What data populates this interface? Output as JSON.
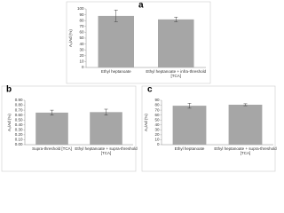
{
  "chart_data": [
    {
      "type": "bar",
      "panel_label": "a",
      "y_label": "A₀/Ad (%)",
      "categories": [
        "Ethyl heptanoate",
        "Ethyl heptanoate + infra-threshold [TCA]"
      ],
      "values": [
        88,
        82
      ],
      "errors": [
        10,
        4
      ],
      "color": "#a6a6a6",
      "ylim": [
        0,
        100
      ],
      "yticks": [
        0,
        10,
        20,
        30,
        40,
        50,
        60,
        70,
        80,
        90,
        100
      ]
    },
    {
      "type": "bar",
      "panel_label": "b",
      "y_label": "A₀/Ad (%)",
      "categories": [
        "Supra-threshold [TCA]",
        "Ethyl heptanoate + supra-threshold [TCA]"
      ],
      "values": [
        0.65,
        0.66
      ],
      "errors": [
        0.05,
        0.06
      ],
      "color": "#a6a6a6",
      "ylim": [
        0,
        0.9
      ],
      "yticks": [
        {
          "value": 0,
          "label": "0.00"
        },
        {
          "value": 0.1,
          "label": "0.10"
        },
        {
          "value": 0.2,
          "label": "0.20"
        },
        {
          "value": 0.3,
          "label": "0.30"
        },
        {
          "value": 0.4,
          "label": "0.40"
        },
        {
          "value": 0.5,
          "label": "0.50"
        },
        {
          "value": 0.6,
          "label": "0.60"
        },
        {
          "value": 0.7,
          "label": "0.70"
        },
        {
          "value": 0.8,
          "label": "0.80"
        },
        {
          "value": 0.9,
          "label": "0.90"
        }
      ]
    },
    {
      "type": "bar",
      "panel_label": "c",
      "y_label": "A₀/Ad (%)",
      "categories": [
        "Ethyl heptanoate",
        "Ethyl heptanoate + supra-threshold [TCA]"
      ],
      "values": [
        79,
        81
      ],
      "errors": [
        5,
        2
      ],
      "color": "#a6a6a6",
      "ylim": [
        0,
        90
      ],
      "yticks": [
        0,
        10,
        20,
        30,
        40,
        50,
        60,
        70,
        80,
        90
      ]
    }
  ]
}
